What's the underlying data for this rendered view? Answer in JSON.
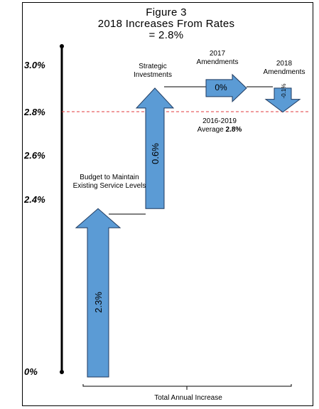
{
  "chart_data": {
    "type": "waterfall",
    "title_lines": [
      "Figure 3",
      "2018 Increases From Rates",
      "= 2.8%"
    ],
    "xlabel": "Total Annual Increase",
    "ylabel": "",
    "y_ticks": [
      {
        "value": 0.0,
        "label": "0%"
      },
      {
        "value": 2.4,
        "label": "2.4%"
      },
      {
        "value": 2.6,
        "label": "2.6%"
      },
      {
        "value": 2.8,
        "label": "2.8%"
      },
      {
        "value": 3.0,
        "label": "3.0%"
      }
    ],
    "steps": [
      {
        "name": "Budget to Maintain Existing Service Levels",
        "value": 2.3,
        "value_label": "2.3%",
        "direction": "up"
      },
      {
        "name": "Strategic Investments",
        "value": 0.6,
        "value_label": "0.6%",
        "direction": "up"
      },
      {
        "name": "2017 Amendments",
        "value": 0.0,
        "value_label": "0%",
        "direction": "flat"
      },
      {
        "name": "2018 Amendments",
        "value": -0.1,
        "value_label": "-0.1%",
        "direction": "down"
      }
    ],
    "reference_line": {
      "value": 2.8,
      "label": "2016-2019",
      "label2_prefix": "Average ",
      "label2_bold": "2.8%",
      "style": "dashed",
      "color": "#e2383d"
    },
    "arrow_color": "#5b9bd5",
    "arrow_stroke": "#1f3a5f"
  }
}
